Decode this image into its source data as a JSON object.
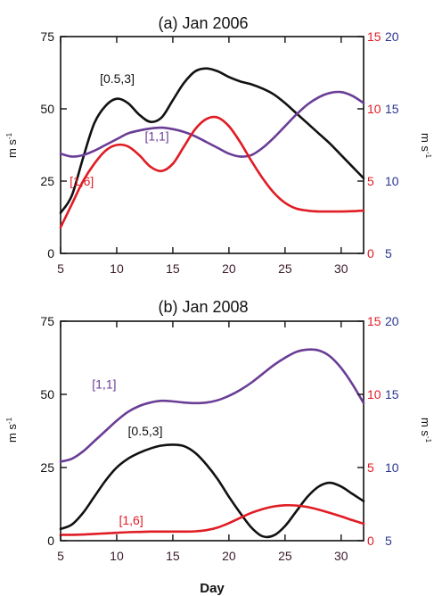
{
  "chart_data": [
    {
      "type": "line",
      "title": "(a) Jan 2006",
      "xlabel": "",
      "ylabel": "m s",
      "ylabel_sup": "-1",
      "right_ylabel": "m s",
      "right_ylabel_sup": "-1",
      "xlim": [
        5,
        32
      ],
      "ylim": [
        0,
        75
      ],
      "xticks": [
        "5",
        "10",
        "15",
        "20",
        "25",
        "30"
      ],
      "yticks": [
        "0",
        "25",
        "50",
        "75"
      ],
      "right_axis_red": {
        "ticks": [
          "0",
          "5",
          "10",
          "15"
        ],
        "range": [
          0,
          15
        ],
        "color": "#e01c24"
      },
      "right_axis_blue": {
        "ticks": [
          "5",
          "10",
          "15",
          "20"
        ],
        "range": [
          5,
          20
        ],
        "color": "#2a3590"
      },
      "series": [
        {
          "name": "[0.5,3]",
          "color": "#111111",
          "x": [
            5,
            6,
            7,
            8,
            9,
            10,
            11,
            12,
            13,
            14,
            15,
            16,
            17,
            18,
            19,
            20,
            21,
            22,
            23,
            24,
            25,
            26,
            27,
            28,
            29,
            30,
            31,
            32
          ],
          "y": [
            14,
            20,
            33,
            45,
            51,
            53.5,
            52,
            48,
            45.5,
            47,
            53,
            59,
            63,
            64,
            63,
            61,
            59.5,
            58.5,
            57,
            55,
            52,
            48.5,
            45,
            41.5,
            38,
            34,
            30,
            26
          ]
        },
        {
          "name": "[1,1]",
          "color": "#6a3d96",
          "x": [
            5,
            6,
            7,
            8,
            9,
            10,
            11,
            12,
            13,
            14,
            15,
            16,
            17,
            18,
            19,
            20,
            21,
            22,
            23,
            24,
            25,
            26,
            27,
            28,
            29,
            30,
            31,
            32
          ],
          "y": [
            34.5,
            33.5,
            34,
            35.5,
            37.5,
            39.5,
            41.5,
            42.5,
            43.2,
            43.5,
            43,
            42,
            40.5,
            38.5,
            36.5,
            34.5,
            33.5,
            34,
            36.5,
            40,
            44,
            48,
            51.5,
            54,
            55.5,
            55.8,
            54.5,
            52
          ]
        },
        {
          "name": "[1,6]",
          "color": "#e01c24",
          "x": [
            5,
            6,
            7,
            8,
            9,
            10,
            11,
            12,
            13,
            14,
            15,
            16,
            17,
            18,
            19,
            20,
            21,
            22,
            23,
            24,
            25,
            26,
            27,
            28,
            29,
            30,
            31,
            32
          ],
          "y": [
            9,
            17,
            25,
            31,
            35.5,
            37.5,
            37,
            34,
            30,
            28.5,
            31,
            37,
            43,
            46.5,
            47,
            44,
            38.5,
            32,
            26,
            21,
            17.5,
            15.5,
            14.8,
            14.5,
            14.5,
            14.5,
            14.6,
            14.8
          ]
        }
      ],
      "annotations": [
        {
          "text": "[0.5,3]",
          "color": "#111111",
          "x": 8.5,
          "y": 59
        },
        {
          "text": "[1,1]",
          "color": "#6a3d96",
          "x": 12.5,
          "y": 39
        },
        {
          "text": "[1,6]",
          "color": "#e01c24",
          "x": 5.8,
          "y": 23.5
        }
      ]
    },
    {
      "type": "line",
      "title": "(b) Jan 2008",
      "xlabel": "Day",
      "ylabel": "m s",
      "ylabel_sup": "-1",
      "right_ylabel": "m s",
      "right_ylabel_sup": "-1",
      "xlim": [
        5,
        32
      ],
      "ylim": [
        0,
        75
      ],
      "xticks": [
        "5",
        "10",
        "15",
        "20",
        "25",
        "30"
      ],
      "yticks": [
        "0",
        "25",
        "50",
        "75"
      ],
      "right_axis_red": {
        "ticks": [
          "0",
          "5",
          "10",
          "15"
        ],
        "range": [
          0,
          15
        ],
        "color": "#e01c24"
      },
      "right_axis_blue": {
        "ticks": [
          "5",
          "10",
          "15",
          "20"
        ],
        "range": [
          5,
          20
        ],
        "color": "#2a3590"
      },
      "series": [
        {
          "name": "[1,1]",
          "color": "#6a3d96",
          "x": [
            5,
            6,
            7,
            8,
            9,
            10,
            11,
            12,
            13,
            14,
            15,
            16,
            17,
            18,
            19,
            20,
            21,
            22,
            23,
            24,
            25,
            26,
            27,
            28,
            29,
            30,
            31,
            32
          ],
          "y": [
            27,
            28,
            30.5,
            34,
            37.5,
            41,
            44,
            46,
            47.2,
            47.8,
            47.6,
            47.2,
            47,
            47.2,
            48,
            49.5,
            51.5,
            54,
            57,
            60,
            62.5,
            64.5,
            65.3,
            65,
            63,
            59,
            53.5,
            47
          ]
        },
        {
          "name": "[0.5,3]",
          "color": "#111111",
          "x": [
            5,
            6,
            7,
            8,
            9,
            10,
            11,
            12,
            13,
            14,
            15,
            16,
            17,
            18,
            19,
            20,
            21,
            22,
            23,
            24,
            25,
            26,
            27,
            28,
            29,
            30,
            31,
            32
          ],
          "y": [
            4,
            5.5,
            9.5,
            15,
            20.5,
            25,
            28,
            30,
            31.5,
            32.5,
            32.8,
            32.3,
            30,
            26,
            21,
            15,
            9.5,
            4.5,
            1.5,
            1.8,
            5,
            10,
            15,
            18.5,
            19.8,
            18.5,
            16,
            13.5
          ]
        },
        {
          "name": "[1,6]",
          "color": "#e01c24",
          "x": [
            5,
            6,
            7,
            8,
            9,
            10,
            11,
            12,
            13,
            14,
            15,
            16,
            17,
            18,
            19,
            20,
            21,
            22,
            23,
            24,
            25,
            26,
            27,
            28,
            29,
            30,
            31,
            32
          ],
          "y": [
            2,
            2,
            2.1,
            2.3,
            2.5,
            2.7,
            2.9,
            3.0,
            3.1,
            3.1,
            3.1,
            3.1,
            3.2,
            3.6,
            4.5,
            6.0,
            7.8,
            9.5,
            10.8,
            11.7,
            12.1,
            12.0,
            11.5,
            10.6,
            9.5,
            8.3,
            7.0,
            5.8
          ]
        }
      ],
      "annotations": [
        {
          "text": "[1,1]",
          "color": "#6a3d96",
          "x": 7.8,
          "y": 52
        },
        {
          "text": "[0.5,3]",
          "color": "#111111",
          "x": 11.0,
          "y": 36
        },
        {
          "text": "[1,6]",
          "color": "#e01c24",
          "x": 10.2,
          "y": 5.5
        }
      ]
    }
  ]
}
